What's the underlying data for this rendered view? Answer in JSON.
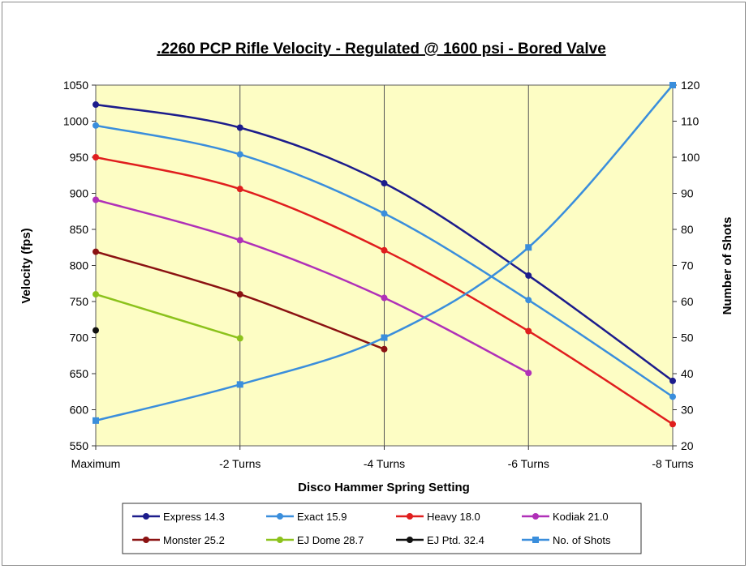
{
  "chart_data": {
    "type": "line",
    "title": ".2260 PCP Rifle Velocity - Regulated  @ 1600 psi - Bored Valve",
    "xlabel": "Disco Hammer Spring Setting",
    "ylabel": "Velocity (fps)",
    "y2label": "Number of Shots",
    "categories": [
      "Maximum",
      "-2 Turns",
      "-4 Turns",
      "-6 Turns",
      "-8 Turns"
    ],
    "ylim": [
      550,
      1050
    ],
    "y_ticks": [
      550,
      600,
      650,
      700,
      750,
      800,
      850,
      900,
      950,
      1000,
      1050
    ],
    "y2lim": [
      20,
      120
    ],
    "y2_ticks": [
      20,
      30,
      40,
      50,
      60,
      70,
      80,
      90,
      100,
      110,
      120
    ],
    "grid": "vertical lines at categories",
    "legend_position": "bottom",
    "series": [
      {
        "name": "Express 14.3",
        "color": "#1c1c8c",
        "marker": "circle",
        "axis": "left",
        "values": [
          1023,
          991,
          914,
          786,
          640
        ]
      },
      {
        "name": "Exact 15.9",
        "color": "#3a8edc",
        "marker": "circle",
        "axis": "left",
        "values": [
          994,
          954,
          872,
          752,
          618
        ]
      },
      {
        "name": "Heavy 18.0",
        "color": "#e01e1e",
        "marker": "circle",
        "axis": "left",
        "values": [
          950,
          906,
          821,
          709,
          580
        ]
      },
      {
        "name": "Kodiak 21.0",
        "color": "#b030b8",
        "marker": "circle",
        "axis": "left",
        "values": [
          891,
          835,
          755,
          651,
          null
        ]
      },
      {
        "name": "Monster 25.2",
        "color": "#8b1212",
        "marker": "circle",
        "axis": "left",
        "values": [
          819,
          760,
          684,
          null,
          null
        ]
      },
      {
        "name": "EJ Dome 28.7",
        "color": "#8cc21c",
        "marker": "circle",
        "axis": "left",
        "values": [
          760,
          699,
          null,
          null,
          null
        ]
      },
      {
        "name": "EJ Ptd. 32.4",
        "color": "#111111",
        "marker": "circle",
        "axis": "left",
        "values": [
          710,
          null,
          null,
          null,
          null
        ]
      },
      {
        "name": "No. of Shots",
        "color": "#3a8edc",
        "marker": "square",
        "axis": "right",
        "values": [
          27,
          37,
          50,
          75,
          120
        ]
      }
    ]
  }
}
